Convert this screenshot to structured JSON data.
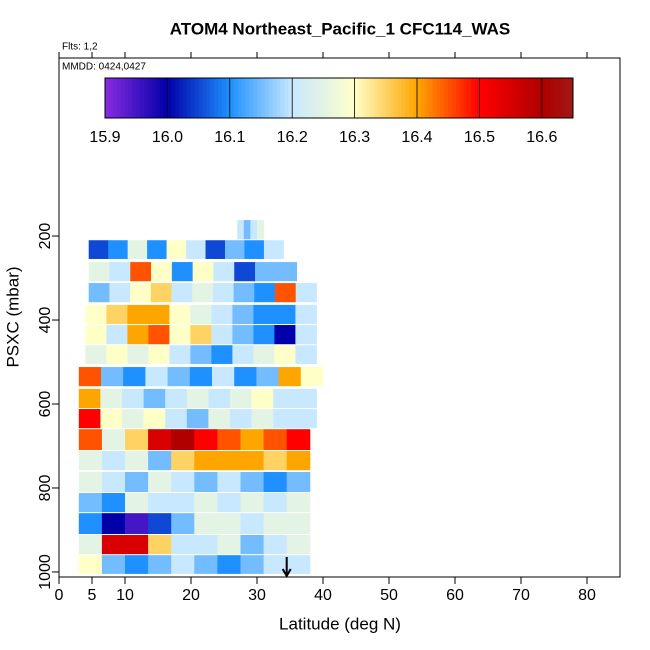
{
  "chart_data": {
    "type": "curtain",
    "title": "ATOM4 Northeast_Pacific_1 CFC114_WAS",
    "annotations": [
      "Flts: 1,2",
      "MMDD: 0424,0427"
    ],
    "xlabel": "Latitude (deg N)",
    "ylabel": "PSXC (mbar)",
    "xlim": [
      0,
      85
    ],
    "xticks": [
      0,
      5,
      10,
      20,
      30,
      40,
      50,
      60,
      70,
      80
    ],
    "ylim": [
      1012,
      -224
    ],
    "yticks": [
      200,
      400,
      600,
      800,
      1000
    ],
    "colorbar": {
      "lim": [
        15.9,
        16.65
      ],
      "ticks": [
        15.9,
        {
          "value": 16,
          "label": "16.0"
        },
        16.1,
        16.2,
        16.3,
        16.4,
        16.5,
        16.6
      ],
      "colorscale": [
        {
          "value": 15.9,
          "color": "#8a2be2"
        },
        {
          "value": 16.0,
          "color": "#0000a8"
        },
        {
          "value": 16.1,
          "color": "#1e90ff"
        },
        {
          "value": 16.2,
          "color": "#c8e8ff"
        },
        {
          "value": 16.3,
          "color": "#ffffc8"
        },
        {
          "value": 16.4,
          "color": "#ffa500"
        },
        {
          "value": 16.5,
          "color": "#ff0000"
        },
        {
          "value": 16.6,
          "color": "#b00000"
        },
        {
          "value": 16.65,
          "color": "#a01818"
        }
      ]
    },
    "marker_x": 34.5,
    "bands": [
      {
        "p": [
          162,
          210
        ],
        "lat": [
          27,
          31
        ],
        "values": [
          16.2,
          16.15,
          16.2,
          16.25
        ]
      },
      {
        "p": [
          210,
          257
        ],
        "lat": [
          4.5,
          34
        ],
        "values": [
          16.05,
          16.1,
          16.25,
          16.1,
          16.3,
          16.2,
          16.05,
          16.15,
          16.1,
          16.2
        ]
      },
      {
        "p": [
          262,
          310
        ],
        "lat": [
          4.5,
          36
        ],
        "values": [
          16.25,
          16.2,
          16.45,
          16.3,
          16.1,
          16.3,
          16.2,
          16.05,
          16.15,
          16.15
        ]
      },
      {
        "p": [
          312,
          360
        ],
        "lat": [
          4.5,
          39
        ],
        "values": [
          16.15,
          16.2,
          16.3,
          16.35,
          16.2,
          16.25,
          16.2,
          16.15,
          16.1,
          16.45,
          16.2
        ]
      },
      {
        "p": [
          364,
          412
        ],
        "lat": [
          4,
          39
        ],
        "values": [
          16.3,
          16.35,
          16.4,
          16.4,
          16.3,
          16.25,
          16.2,
          16.15,
          16.1,
          16.1,
          16.2
        ]
      },
      {
        "p": [
          412,
          460
        ],
        "lat": [
          4,
          39
        ],
        "values": [
          16.3,
          16.2,
          16.4,
          16.45,
          16.3,
          16.35,
          16.2,
          16.15,
          16.1,
          16.0,
          16.2
        ]
      },
      {
        "p": [
          460,
          507
        ],
        "lat": [
          4,
          39
        ],
        "values": [
          16.25,
          16.3,
          16.25,
          16.3,
          16.2,
          16.15,
          16.1,
          16.2,
          16.25,
          16.3,
          16.2
        ]
      },
      {
        "p": [
          512,
          560
        ],
        "lat": [
          3,
          40
        ],
        "values": [
          16.45,
          16.15,
          16.1,
          16.2,
          16.15,
          16.1,
          16.2,
          16.1,
          16.15,
          16.4,
          16.3
        ]
      },
      {
        "p": [
          564,
          612
        ],
        "lat": [
          3,
          39
        ],
        "values": [
          16.4,
          16.25,
          16.2,
          16.15,
          16.2,
          16.25,
          16.2,
          16.25,
          16.3,
          16.2,
          16.2
        ]
      },
      {
        "p": [
          612,
          660
        ],
        "lat": [
          3,
          39
        ],
        "values": [
          16.5,
          16.3,
          16.25,
          16.3,
          16.2,
          16.15,
          16.25,
          16.2,
          16.25,
          16.2,
          16.2
        ]
      },
      {
        "p": [
          660,
          712
        ],
        "lat": [
          3,
          38
        ],
        "values": [
          16.45,
          16.25,
          16.35,
          16.55,
          16.6,
          16.5,
          16.45,
          16.4,
          16.45,
          16.5
        ]
      },
      {
        "p": [
          712,
          760
        ],
        "lat": [
          3,
          38
        ],
        "values": [
          16.25,
          16.2,
          16.25,
          16.15,
          16.35,
          16.4,
          16.4,
          16.4,
          16.35,
          16.4
        ]
      },
      {
        "p": [
          762,
          812
        ],
        "lat": [
          3,
          38
        ],
        "values": [
          16.25,
          16.2,
          16.15,
          16.25,
          16.2,
          16.15,
          16.2,
          16.15,
          16.1,
          16.15
        ]
      },
      {
        "p": [
          812,
          860
        ],
        "lat": [
          3,
          38
        ],
        "values": [
          16.15,
          16.1,
          16.25,
          16.2,
          16.2,
          16.25,
          16.2,
          16.25,
          16.2,
          16.25
        ]
      },
      {
        "p": [
          860,
          912
        ],
        "lat": [
          3,
          38
        ],
        "values": [
          16.1,
          16.0,
          15.95,
          16.05,
          16.15,
          16.25,
          16.25,
          16.2,
          16.25,
          16.25
        ]
      },
      {
        "p": [
          912,
          960
        ],
        "lat": [
          3,
          38
        ],
        "values": [
          16.25,
          16.55,
          16.55,
          16.35,
          16.2,
          16.2,
          16.25,
          16.15,
          16.2,
          16.25
        ]
      },
      {
        "p": [
          960,
          1007
        ],
        "lat": [
          3,
          38
        ],
        "values": [
          16.3,
          16.15,
          16.1,
          16.15,
          16.2,
          16.15,
          16.1,
          16.15,
          16.2,
          16.2
        ]
      }
    ]
  }
}
